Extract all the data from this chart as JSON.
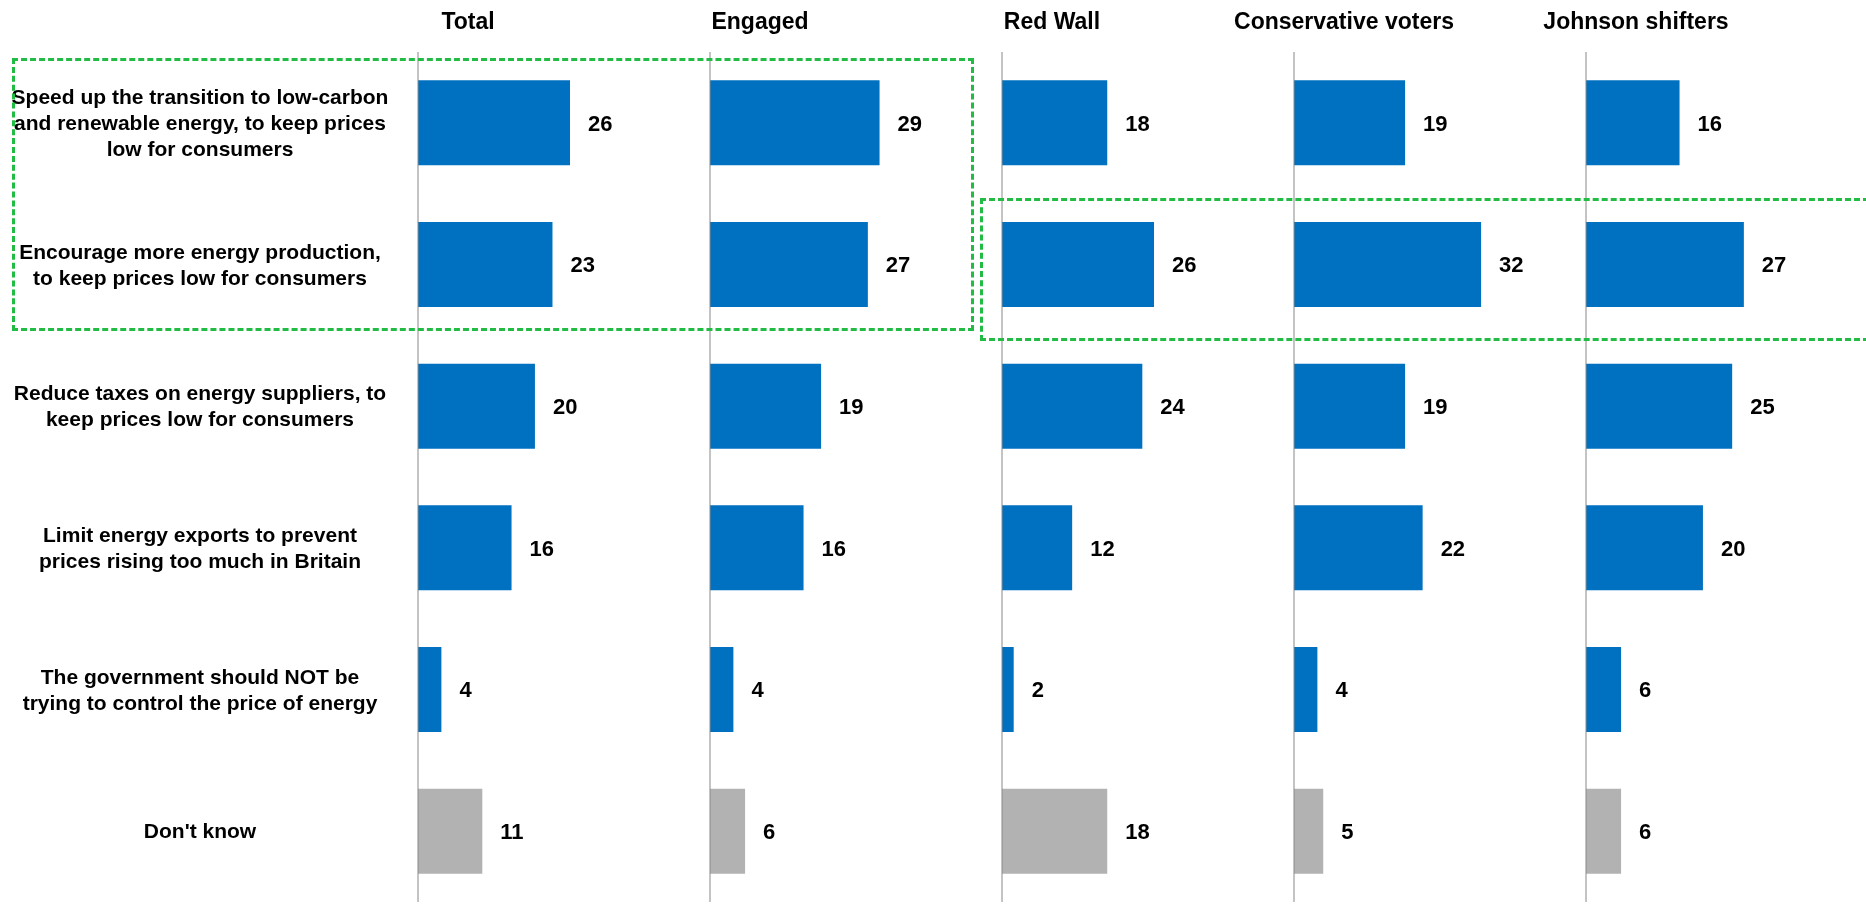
{
  "chart_data": [
    {
      "type": "bar",
      "orientation": "horizontal",
      "title": "Total",
      "categories": [
        "Speed up the transition to low-carbon and renewable energy, to keep prices low for consumers",
        "Encourage more energy production, to keep prices low for consumers",
        "Reduce taxes on energy suppliers, to keep prices low for consumers",
        "Limit energy exports to prevent prices rising too much in Britain",
        "The government should NOT be trying to control the price of energy",
        "Don't know"
      ],
      "values": [
        26,
        23,
        20,
        16,
        4,
        11
      ],
      "colors": [
        "#0070c0",
        "#0070c0",
        "#0070c0",
        "#0070c0",
        "#0070c0",
        "#b2b2b2"
      ],
      "data_labels": true,
      "tick_labels": "y"
    },
    {
      "type": "bar",
      "orientation": "horizontal",
      "title": "Engaged",
      "categories": [
        null,
        null,
        null,
        null,
        null,
        null
      ],
      "values": [
        29,
        27,
        19,
        16,
        4,
        6
      ],
      "colors": [
        "#0070c0",
        "#0070c0",
        "#0070c0",
        "#0070c0",
        "#0070c0",
        "#b2b2b2"
      ],
      "data_labels": true,
      "tick_labels": false
    },
    {
      "type": "bar",
      "orientation": "horizontal",
      "title": "Red Wall",
      "categories": [
        null,
        null,
        null,
        null,
        null,
        null
      ],
      "values": [
        18,
        26,
        24,
        12,
        2,
        18
      ],
      "colors": [
        "#0070c0",
        "#0070c0",
        "#0070c0",
        "#0070c0",
        "#0070c0",
        "#b2b2b2"
      ],
      "data_labels": true,
      "tick_labels": false
    },
    {
      "type": "bar",
      "orientation": "horizontal",
      "title": "Conservative voters",
      "categories": [
        null,
        null,
        null,
        null,
        null,
        null
      ],
      "values": [
        19,
        32,
        19,
        22,
        4,
        5
      ],
      "colors": [
        "#0070c0",
        "#0070c0",
        "#0070c0",
        "#0070c0",
        "#0070c0",
        "#b2b2b2"
      ],
      "data_labels": true,
      "tick_labels": false
    },
    {
      "type": "bar",
      "orientation": "horizontal",
      "title": "Johnson shifters",
      "categories": [
        null,
        null,
        null,
        null,
        null,
        null
      ],
      "values": [
        16,
        27,
        25,
        20,
        6,
        6
      ],
      "colors": [
        "#0070c0",
        "#0070c0",
        "#0070c0",
        "#0070c0",
        "#0070c0",
        "#b2b2b2"
      ],
      "data_labels": true,
      "tick_labels": false
    }
  ]
}
